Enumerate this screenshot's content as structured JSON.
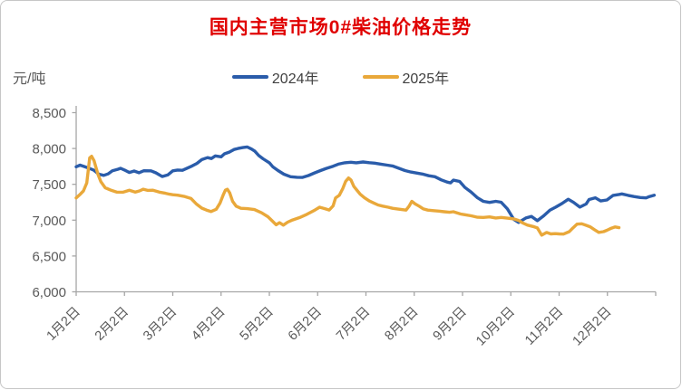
{
  "title": "国内主营市场0#柴油价格走势",
  "title_color": "#e00000",
  "y_axis_unit": "元/吨",
  "legend": [
    {
      "label": "2024年",
      "color": "#2a5caa"
    },
    {
      "label": "2025年",
      "color": "#e9a83a"
    }
  ],
  "axis_color": "#a6a6a6",
  "axis_text_color": "#595959",
  "chart_data": {
    "type": "line",
    "title": "国内主营市场0#柴油价格走势",
    "ylabel": "元/吨",
    "ylim": [
      6000,
      8500
    ],
    "grid": false,
    "legend_position": "top",
    "y_ticks": [
      {
        "value": 8500,
        "label": "8,500"
      },
      {
        "value": 8000,
        "label": "8,000"
      },
      {
        "value": 7500,
        "label": "7,500"
      },
      {
        "value": 7000,
        "label": "7,000"
      },
      {
        "value": 6500,
        "label": "6,500"
      },
      {
        "value": 6000,
        "label": "6,000"
      }
    ],
    "x_tick_labels": [
      "1月2日",
      "2月2日",
      "3月2日",
      "4月2日",
      "5月2日",
      "6月2日",
      "7月2日",
      "8月2日",
      "9月2日",
      "10月2日",
      "11月2日",
      "12月2日"
    ],
    "series": [
      {
        "name": "2024年",
        "color": "#2a5caa",
        "points": [
          [
            1.0,
            7745
          ],
          [
            1.08,
            7768
          ],
          [
            1.17,
            7748
          ],
          [
            1.26,
            7726
          ],
          [
            1.36,
            7700
          ],
          [
            1.47,
            7642
          ],
          [
            1.57,
            7625
          ],
          [
            1.66,
            7645
          ],
          [
            1.75,
            7688
          ],
          [
            1.86,
            7710
          ],
          [
            1.92,
            7724
          ],
          [
            2.0,
            7700
          ],
          [
            2.1,
            7666
          ],
          [
            2.2,
            7685
          ],
          [
            2.3,
            7662
          ],
          [
            2.4,
            7690
          ],
          [
            2.55,
            7688
          ],
          [
            2.65,
            7660
          ],
          [
            2.78,
            7608
          ],
          [
            2.9,
            7632
          ],
          [
            3.0,
            7688
          ],
          [
            3.1,
            7700
          ],
          [
            3.2,
            7696
          ],
          [
            3.3,
            7726
          ],
          [
            3.4,
            7756
          ],
          [
            3.5,
            7792
          ],
          [
            3.6,
            7845
          ],
          [
            3.72,
            7872
          ],
          [
            3.8,
            7860
          ],
          [
            3.88,
            7896
          ],
          [
            4.0,
            7884
          ],
          [
            4.07,
            7926
          ],
          [
            4.17,
            7950
          ],
          [
            4.27,
            7986
          ],
          [
            4.35,
            8000
          ],
          [
            4.45,
            8012
          ],
          [
            4.54,
            8022
          ],
          [
            4.63,
            7992
          ],
          [
            4.7,
            7962
          ],
          [
            4.78,
            7902
          ],
          [
            4.87,
            7856
          ],
          [
            5.0,
            7800
          ],
          [
            5.07,
            7746
          ],
          [
            5.18,
            7692
          ],
          [
            5.3,
            7642
          ],
          [
            5.44,
            7606
          ],
          [
            5.57,
            7598
          ],
          [
            5.68,
            7596
          ],
          [
            5.81,
            7622
          ],
          [
            5.94,
            7660
          ],
          [
            6.06,
            7692
          ],
          [
            6.18,
            7722
          ],
          [
            6.32,
            7752
          ],
          [
            6.43,
            7782
          ],
          [
            6.56,
            7800
          ],
          [
            6.69,
            7808
          ],
          [
            6.8,
            7800
          ],
          [
            6.94,
            7812
          ],
          [
            7.07,
            7802
          ],
          [
            7.18,
            7796
          ],
          [
            7.31,
            7782
          ],
          [
            7.44,
            7768
          ],
          [
            7.55,
            7756
          ],
          [
            7.69,
            7722
          ],
          [
            7.81,
            7692
          ],
          [
            7.93,
            7672
          ],
          [
            8.06,
            7656
          ],
          [
            8.19,
            7640
          ],
          [
            8.3,
            7620
          ],
          [
            8.43,
            7606
          ],
          [
            8.56,
            7562
          ],
          [
            8.68,
            7532
          ],
          [
            8.75,
            7520
          ],
          [
            8.81,
            7558
          ],
          [
            8.94,
            7540
          ],
          [
            9.05,
            7456
          ],
          [
            9.18,
            7390
          ],
          [
            9.31,
            7312
          ],
          [
            9.43,
            7262
          ],
          [
            9.56,
            7248
          ],
          [
            9.69,
            7262
          ],
          [
            9.8,
            7250
          ],
          [
            9.93,
            7156
          ],
          [
            10.06,
            7012
          ],
          [
            10.16,
            6968
          ],
          [
            10.31,
            7030
          ],
          [
            10.43,
            7052
          ],
          [
            10.55,
            6992
          ],
          [
            10.68,
            7060
          ],
          [
            10.81,
            7140
          ],
          [
            10.93,
            7182
          ],
          [
            11.06,
            7232
          ],
          [
            11.19,
            7292
          ],
          [
            11.3,
            7248
          ],
          [
            11.43,
            7182
          ],
          [
            11.56,
            7226
          ],
          [
            11.62,
            7288
          ],
          [
            11.75,
            7312
          ],
          [
            11.86,
            7268
          ],
          [
            11.99,
            7282
          ],
          [
            12.12,
            7346
          ],
          [
            12.24,
            7358
          ],
          [
            12.3,
            7366
          ],
          [
            12.43,
            7346
          ],
          [
            12.55,
            7330
          ],
          [
            12.68,
            7316
          ],
          [
            12.8,
            7310
          ],
          [
            12.87,
            7330
          ],
          [
            12.97,
            7348
          ]
        ]
      },
      {
        "name": "2025年",
        "color": "#e9a83a",
        "points": [
          [
            1.0,
            7310
          ],
          [
            1.07,
            7352
          ],
          [
            1.15,
            7408
          ],
          [
            1.22,
            7520
          ],
          [
            1.28,
            7870
          ],
          [
            1.32,
            7892
          ],
          [
            1.37,
            7830
          ],
          [
            1.45,
            7640
          ],
          [
            1.51,
            7536
          ],
          [
            1.6,
            7452
          ],
          [
            1.73,
            7416
          ],
          [
            1.84,
            7392
          ],
          [
            1.97,
            7390
          ],
          [
            2.01,
            7398
          ],
          [
            2.1,
            7418
          ],
          [
            2.22,
            7392
          ],
          [
            2.31,
            7408
          ],
          [
            2.39,
            7432
          ],
          [
            2.48,
            7416
          ],
          [
            2.59,
            7418
          ],
          [
            2.72,
            7392
          ],
          [
            2.85,
            7375
          ],
          [
            2.93,
            7362
          ],
          [
            3.0,
            7355
          ],
          [
            3.1,
            7348
          ],
          [
            3.25,
            7330
          ],
          [
            3.38,
            7302
          ],
          [
            3.49,
            7225
          ],
          [
            3.6,
            7168
          ],
          [
            3.7,
            7140
          ],
          [
            3.79,
            7120
          ],
          [
            3.9,
            7152
          ],
          [
            3.98,
            7240
          ],
          [
            4.05,
            7360
          ],
          [
            4.09,
            7418
          ],
          [
            4.13,
            7432
          ],
          [
            4.18,
            7380
          ],
          [
            4.24,
            7262
          ],
          [
            4.31,
            7196
          ],
          [
            4.41,
            7166
          ],
          [
            4.54,
            7160
          ],
          [
            4.69,
            7148
          ],
          [
            4.84,
            7102
          ],
          [
            4.97,
            7048
          ],
          [
            5.06,
            6990
          ],
          [
            5.14,
            6936
          ],
          [
            5.21,
            6965
          ],
          [
            5.29,
            6930
          ],
          [
            5.38,
            6972
          ],
          [
            5.48,
            7002
          ],
          [
            5.63,
            7036
          ],
          [
            5.78,
            7082
          ],
          [
            5.94,
            7140
          ],
          [
            6.04,
            7180
          ],
          [
            6.15,
            7160
          ],
          [
            6.24,
            7142
          ],
          [
            6.32,
            7200
          ],
          [
            6.37,
            7310
          ],
          [
            6.45,
            7348
          ],
          [
            6.52,
            7440
          ],
          [
            6.58,
            7540
          ],
          [
            6.64,
            7588
          ],
          [
            6.69,
            7560
          ],
          [
            6.75,
            7470
          ],
          [
            6.81,
            7420
          ],
          [
            6.88,
            7362
          ],
          [
            6.97,
            7312
          ],
          [
            7.07,
            7268
          ],
          [
            7.16,
            7240
          ],
          [
            7.25,
            7212
          ],
          [
            7.35,
            7196
          ],
          [
            7.46,
            7180
          ],
          [
            7.55,
            7166
          ],
          [
            7.65,
            7156
          ],
          [
            7.74,
            7148
          ],
          [
            7.83,
            7140
          ],
          [
            7.89,
            7192
          ],
          [
            7.95,
            7262
          ],
          [
            8.02,
            7226
          ],
          [
            8.1,
            7196
          ],
          [
            8.19,
            7156
          ],
          [
            8.28,
            7140
          ],
          [
            8.4,
            7132
          ],
          [
            8.51,
            7126
          ],
          [
            8.62,
            7118
          ],
          [
            8.73,
            7110
          ],
          [
            8.81,
            7118
          ],
          [
            8.96,
            7086
          ],
          [
            9.05,
            7076
          ],
          [
            9.18,
            7060
          ],
          [
            9.31,
            7040
          ],
          [
            9.43,
            7038
          ],
          [
            9.56,
            7046
          ],
          [
            9.69,
            7030
          ],
          [
            9.8,
            7038
          ],
          [
            9.93,
            7028
          ],
          [
            10.06,
            7018
          ],
          [
            10.16,
            6996
          ],
          [
            10.25,
            6960
          ],
          [
            10.34,
            6932
          ],
          [
            10.46,
            6912
          ],
          [
            10.55,
            6892
          ],
          [
            10.64,
            6790
          ],
          [
            10.74,
            6828
          ],
          [
            10.83,
            6808
          ],
          [
            10.92,
            6812
          ],
          [
            11.0,
            6808
          ],
          [
            11.09,
            6806
          ],
          [
            11.21,
            6840
          ],
          [
            11.28,
            6888
          ],
          [
            11.37,
            6945
          ],
          [
            11.47,
            6950
          ],
          [
            11.56,
            6928
          ],
          [
            11.64,
            6908
          ],
          [
            11.73,
            6868
          ],
          [
            11.82,
            6830
          ],
          [
            11.92,
            6840
          ],
          [
            11.99,
            6858
          ],
          [
            12.08,
            6888
          ],
          [
            12.16,
            6905
          ],
          [
            12.24,
            6895
          ]
        ]
      }
    ]
  }
}
